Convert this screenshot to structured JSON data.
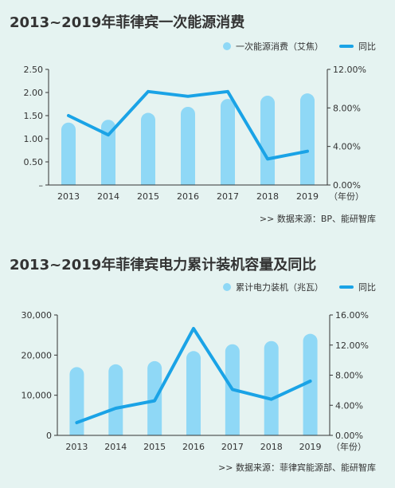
{
  "chart_data": [
    {
      "type": "bar",
      "title": "2013~2019年菲律宾一次能源消费",
      "categories": [
        "2013",
        "2014",
        "2015",
        "2016",
        "2017",
        "2018",
        "2019"
      ],
      "x_unit": "（年份）",
      "series": [
        {
          "name": "一次能源消费（艾焦）",
          "type": "bar",
          "axis": "left",
          "values": [
            1.35,
            1.41,
            1.56,
            1.69,
            1.86,
            1.93,
            1.98
          ]
        },
        {
          "name": "同比",
          "type": "line",
          "axis": "right",
          "values": [
            7.2,
            5.2,
            9.7,
            9.2,
            9.7,
            2.7,
            3.5
          ]
        }
      ],
      "ylim": [
        0,
        2.5
      ],
      "yticks": [
        "–",
        "0.50",
        "1.00",
        "1.50",
        "2.00",
        "2.50"
      ],
      "y2lim": [
        0,
        12
      ],
      "y2ticks": [
        "0.00%",
        "4.00%",
        "8.00%",
        "12.00%"
      ],
      "source": ">>  数据来源：BP、能研智库",
      "colors": {
        "bar": "#8fd8f6",
        "line": "#1aa3e6"
      }
    },
    {
      "type": "bar",
      "title": "2013~2019年菲律宾电力累计装机容量及同比",
      "categories": [
        "2013",
        "2014",
        "2015",
        "2016",
        "2017",
        "2018",
        "2019"
      ],
      "x_unit": "（年份）",
      "series": [
        {
          "name": "累计电力装机（兆瓦）",
          "type": "bar",
          "axis": "left",
          "values": [
            17000,
            17700,
            18500,
            21000,
            22700,
            23500,
            25300
          ]
        },
        {
          "name": "同比",
          "type": "line",
          "axis": "right",
          "values": [
            1.7,
            3.6,
            4.6,
            14.2,
            6.1,
            4.8,
            7.2
          ]
        }
      ],
      "ylim": [
        0,
        30000
      ],
      "yticks": [
        "0",
        "10,000",
        "20,000",
        "30,000"
      ],
      "y2lim": [
        0,
        16
      ],
      "y2ticks": [
        "0.00%",
        "4.00%",
        "8.00%",
        "12.00%",
        "16.00%"
      ],
      "source": ">>  数据来源：菲律宾能源部、能研智库",
      "colors": {
        "bar": "#8fd8f6",
        "line": "#1aa3e6"
      }
    }
  ]
}
